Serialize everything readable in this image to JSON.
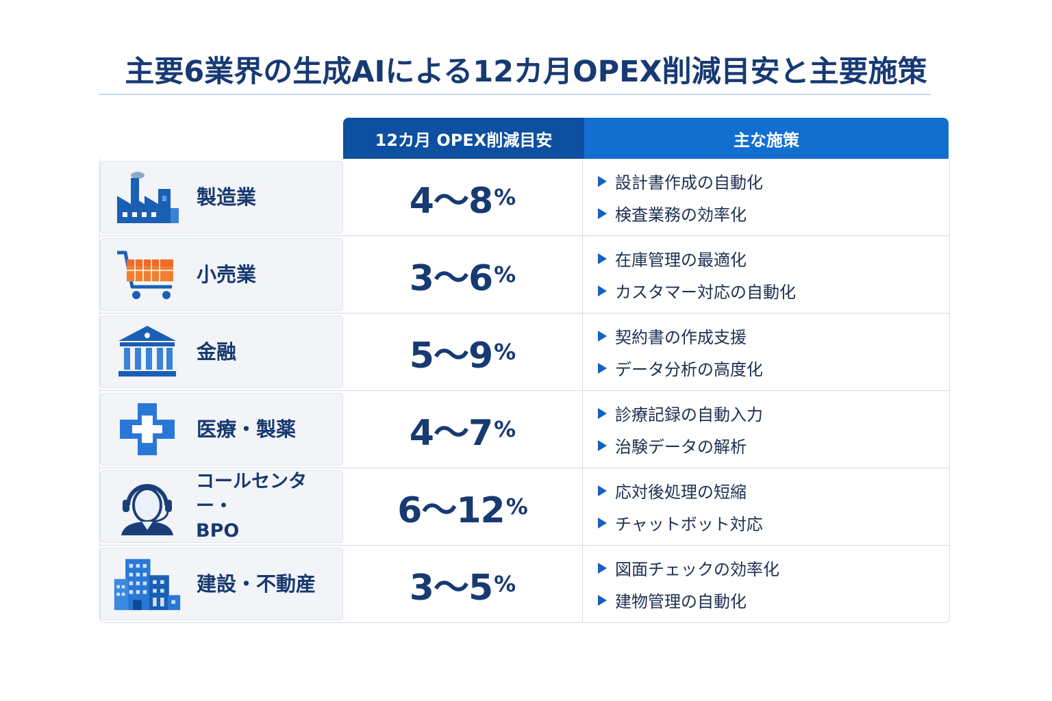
{
  "title": "主要6業界の生成AIによる12カ月OPEX削減目安と主要施策",
  "header": {
    "col_reduction": "12カ月 OPEX削減目安",
    "col_measures": "主な施策"
  },
  "rows": [
    {
      "industry": "製造業",
      "icon": "factory-icon",
      "range": "4〜8",
      "unit": "%",
      "measures": [
        "設計書作成の自動化",
        "検査業務の効率化"
      ]
    },
    {
      "industry": "小売業",
      "icon": "shopping-cart-icon",
      "range": "3〜6",
      "unit": "%",
      "measures": [
        "在庫管理の最適化",
        "カスタマー対応の自動化"
      ]
    },
    {
      "industry": "金融",
      "icon": "bank-icon",
      "range": "5〜9",
      "unit": "%",
      "measures": [
        "契約書の作成支援",
        "データ分析の高度化"
      ]
    },
    {
      "industry": "医療・製薬",
      "icon": "medical-cross-icon",
      "range": "4〜7",
      "unit": "%",
      "measures": [
        "診療記録の自動入力",
        "治験データの解析"
      ]
    },
    {
      "industry": "コールセンター・\nBPO",
      "icon": "headset-operator-icon",
      "range": "6〜12",
      "unit": "%",
      "measures": [
        "応対後処理の短縮",
        "チャットボット対応"
      ]
    },
    {
      "industry": "建設・不動産",
      "icon": "buildings-icon",
      "range": "3〜5",
      "unit": "%",
      "measures": [
        "図面チェックの効率化",
        "建物管理の自動化"
      ]
    }
  ],
  "colors": {
    "header_dark": "#0d4fa0",
    "header_light": "#136fcf",
    "text_navy": "#173a73",
    "bullet": "#1560c0"
  }
}
